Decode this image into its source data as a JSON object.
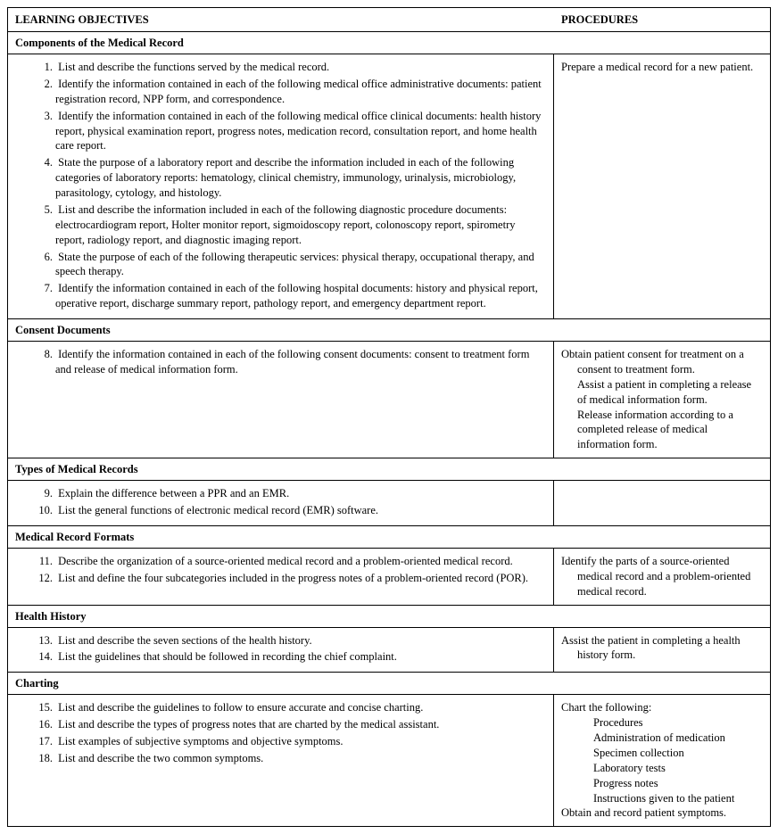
{
  "headers": {
    "left": "LEARNING OBJECTIVES",
    "right": "PROCEDURES"
  },
  "sections": [
    {
      "title": "Components of the Medical Record",
      "start": 1,
      "objectives": [
        "List and describe the functions served by the medical record.",
        "Identify the information contained in each of the following medical office administrative documents: patient registration record, NPP form, and correspondence.",
        "Identify the information contained in each of the following medical office clinical documents: health history report, physical examination report, progress notes, medication record, consultation report, and home health care report.",
        "State the purpose of a laboratory report and describe the information included in each of the following categories of laboratory reports: hematology, clinical chemistry, immunology, urinalysis, microbiology, parasitology, cytology, and histology.",
        "List and describe the information included in each of the following diagnostic procedure documents: electrocardiogram report, Holter monitor report, sigmoidoscopy report, colonoscopy report, spirometry report, radiology report, and diagnostic imaging report.",
        "State the purpose of each of the following therapeutic services: physical therapy, occupational therapy, and speech therapy.",
        "Identify the information contained in each of the following hospital documents: history and physical report, operative report, discharge summary report, pathology report, and emergency department report."
      ],
      "procedure_lines": [
        {
          "text": "Prepare a medical record for a new patient.",
          "indent": 0
        }
      ]
    },
    {
      "title": "Consent Documents",
      "start": 8,
      "objectives": [
        "Identify the information contained in each of the following consent documents: consent to treatment form and release of medical information form."
      ],
      "procedure_lines": [
        {
          "text": "Obtain patient consent for treatment on a",
          "indent": 0
        },
        {
          "text": "consent to treatment form.",
          "indent": 1
        },
        {
          "text": "Assist a patient in completing a release",
          "indent": 1
        },
        {
          "text": "of medical information form.",
          "indent": 1
        },
        {
          "text": "Release information according to a",
          "indent": 1
        },
        {
          "text": "completed release of medical",
          "indent": 1
        },
        {
          "text": "information form.",
          "indent": 1
        }
      ]
    },
    {
      "title": "Types of Medical Records",
      "start": 9,
      "objectives": [
        "Explain the difference between a PPR and an EMR.",
        "List the general functions of electronic medical record (EMR) software."
      ],
      "procedure_lines": []
    },
    {
      "title": "Medical Record Formats",
      "start": 11,
      "objectives": [
        "Describe the organization of a source-oriented medical record and a problem-oriented medical record.",
        "List and define the four subcategories included in the progress notes of a problem-oriented record (POR)."
      ],
      "procedure_lines": [
        {
          "text": "Identify the parts of a source-oriented",
          "indent": 0
        },
        {
          "text": "medical record and a problem-oriented",
          "indent": 1
        },
        {
          "text": "medical record.",
          "indent": 1
        }
      ]
    },
    {
      "title": "Health History",
      "start": 13,
      "objectives": [
        "List and describe the seven sections of the health history.",
        "List the guidelines that should be followed in recording the chief complaint."
      ],
      "procedure_lines": [
        {
          "text": "Assist the patient in completing a health",
          "indent": 0
        },
        {
          "text": "history form.",
          "indent": 1
        }
      ]
    },
    {
      "title": "Charting",
      "start": 15,
      "objectives": [
        "List and describe the guidelines to follow to ensure accurate and concise charting.",
        "List and describe the types of progress notes that are charted by the medical assistant.",
        "List examples of subjective symptoms and objective symptoms.",
        "List and describe the two common symptoms."
      ],
      "procedure_lines": [
        {
          "text": "Chart the following:",
          "indent": 0
        },
        {
          "text": "Procedures",
          "indent": 2
        },
        {
          "text": "Administration of medication",
          "indent": 2
        },
        {
          "text": "Specimen collection",
          "indent": 2
        },
        {
          "text": "Laboratory tests",
          "indent": 2
        },
        {
          "text": "Progress notes",
          "indent": 2
        },
        {
          "text": "Instructions given to the patient",
          "indent": 2
        },
        {
          "text": "Obtain and record patient symptoms.",
          "indent": 0
        }
      ]
    }
  ]
}
